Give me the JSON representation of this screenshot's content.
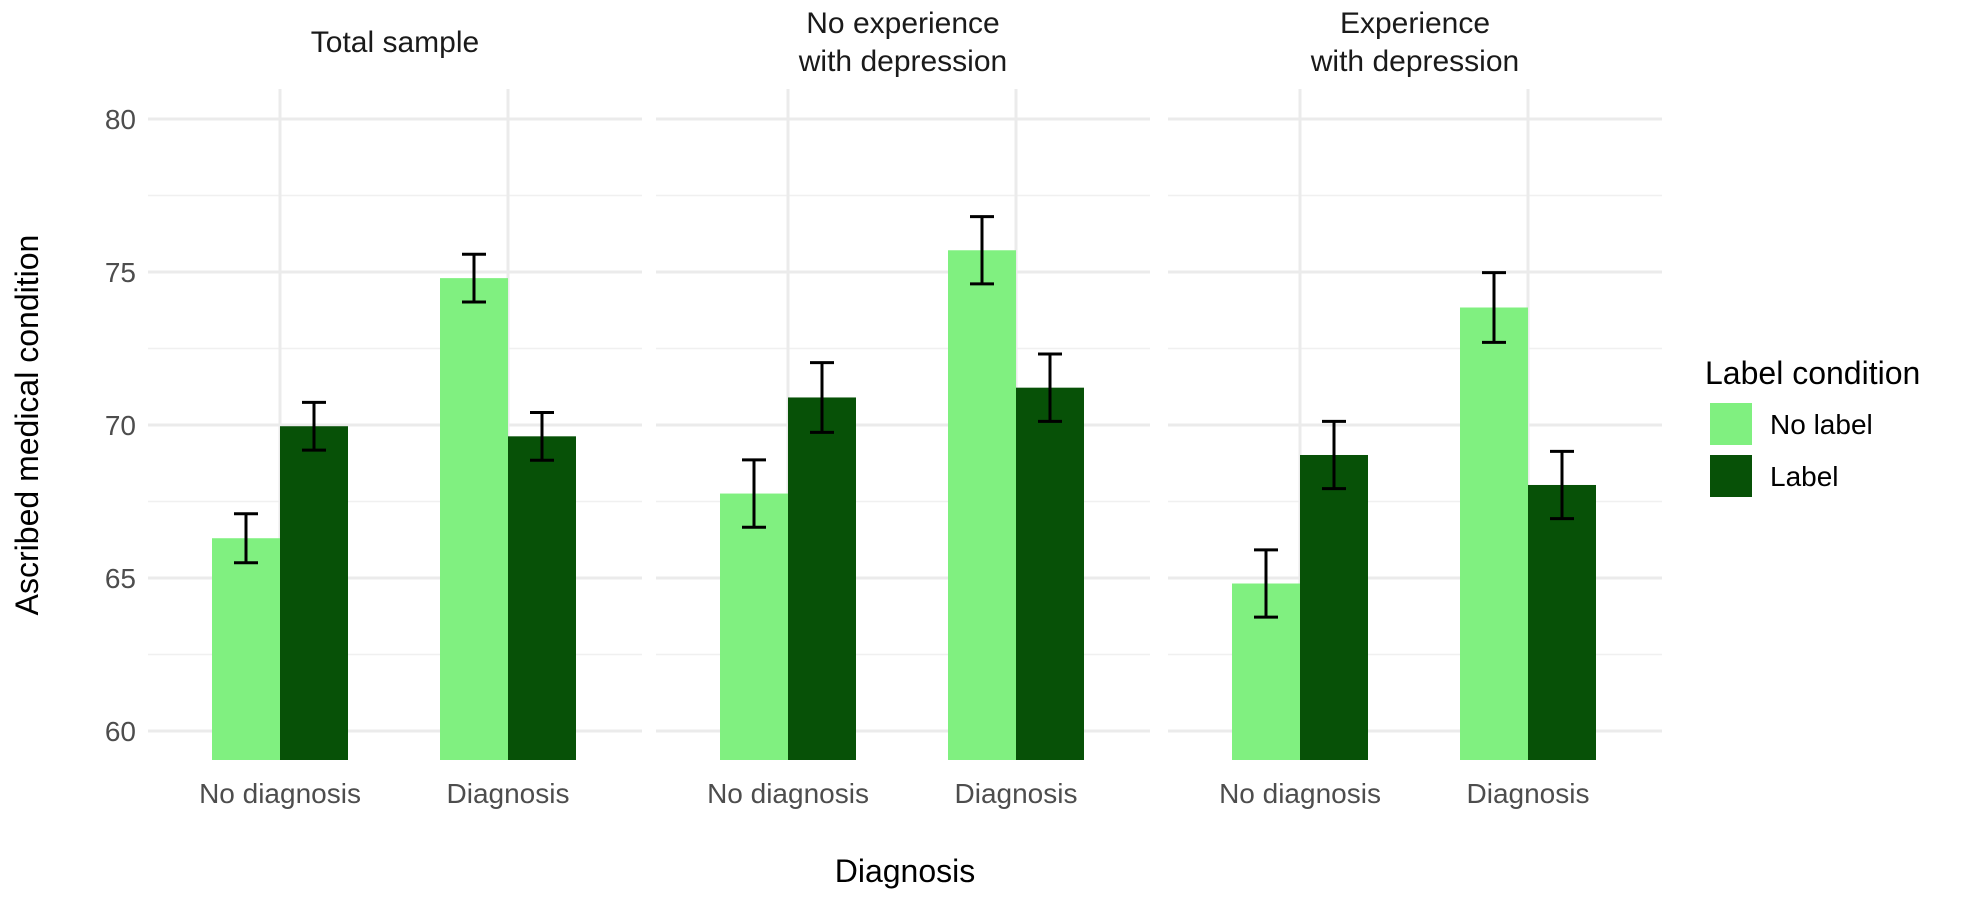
{
  "chart_data": {
    "type": "bar",
    "ylabel": "Ascribed medical condition",
    "xlabel": "Diagnosis",
    "ylim": [
      59.05,
      80.6
    ],
    "yticks": [
      60,
      65,
      70,
      75,
      80
    ],
    "categories": [
      "No diagnosis",
      "Diagnosis"
    ],
    "grid": true,
    "legend": {
      "title": "Label condition",
      "placement": "right",
      "entries": [
        {
          "name": "No label",
          "color": "#80F080"
        },
        {
          "name": "Label",
          "color": "#075107"
        }
      ]
    },
    "panels": [
      {
        "title_lines": [
          "Total sample"
        ],
        "series": [
          {
            "name": "No label",
            "values": [
              66.3,
              74.8
            ],
            "errors": [
              0.8,
              0.78
            ]
          },
          {
            "name": "Label",
            "values": [
              69.96,
              69.63
            ],
            "errors": [
              0.78,
              0.78
            ]
          }
        ]
      },
      {
        "title_lines": [
          "No experience",
          "with depression"
        ],
        "series": [
          {
            "name": "No label",
            "values": [
              67.76,
              75.71
            ],
            "errors": [
              1.1,
              1.1
            ]
          },
          {
            "name": "Label",
            "values": [
              70.9,
              71.22
            ],
            "errors": [
              1.14,
              1.1
            ]
          }
        ]
      },
      {
        "title_lines": [
          "Experience",
          "with depression"
        ],
        "series": [
          {
            "name": "No label",
            "values": [
              64.82,
              73.84
            ],
            "errors": [
              1.1,
              1.14
            ]
          },
          {
            "name": "Label",
            "values": [
              69.02,
              68.04
            ],
            "errors": [
              1.1,
              1.1
            ]
          }
        ]
      }
    ]
  }
}
